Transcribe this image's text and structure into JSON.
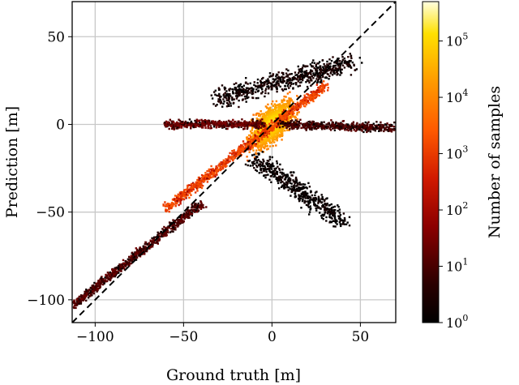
{
  "chart_data": {
    "type": "heatmap",
    "title": "",
    "xlabel": "Ground truth [m]",
    "ylabel": "Prediction [m]",
    "xlim": [
      -113,
      70
    ],
    "ylim": [
      -113,
      70
    ],
    "xticks": [
      -100,
      -50,
      0,
      50
    ],
    "yticks": [
      -100,
      -50,
      0,
      50
    ],
    "xtick_labels": [
      "−100",
      "−50",
      "0",
      "50"
    ],
    "ytick_labels": [
      "−100",
      "−50",
      "0",
      "50"
    ],
    "grid": true,
    "reference_line": {
      "style": "dashed",
      "color": "#000000",
      "from": [
        -113,
        -113
      ],
      "to": [
        70,
        70
      ]
    },
    "colormap": "hot",
    "colorbar": {
      "label": "Number of samples",
      "scale": "log",
      "range": [
        1,
        500000
      ],
      "ticks": [
        {
          "value": 1,
          "base": "10",
          "exp": "0"
        },
        {
          "value": 10,
          "base": "10",
          "exp": "1"
        },
        {
          "value": 100,
          "base": "10",
          "exp": "2"
        },
        {
          "value": 1000,
          "base": "10",
          "exp": "3"
        },
        {
          "value": 10000,
          "base": "10",
          "exp": "4"
        },
        {
          "value": 100000,
          "base": "10",
          "exp": "5"
        }
      ]
    },
    "density_regions": [
      {
        "name": "central-core",
        "center": [
          0,
          0
        ],
        "extent": [
          18,
          15
        ],
        "count": 300000
      },
      {
        "name": "near-diagonal-band",
        "from": [
          -60,
          -48
        ],
        "to": [
          30,
          22
        ],
        "count": 3000
      },
      {
        "name": "lower-diagonal-branch",
        "from": [
          -112,
          -103
        ],
        "to": [
          -40,
          -45
        ],
        "count": 30
      },
      {
        "name": "horizontal-band-left",
        "from": [
          -60,
          0
        ],
        "to": [
          -5,
          0
        ],
        "count": 50
      },
      {
        "name": "horizontal-band-right",
        "from": [
          5,
          0
        ],
        "to": [
          68,
          -2
        ],
        "count": 20
      },
      {
        "name": "upper-scatter",
        "from": [
          -30,
          15
        ],
        "to": [
          45,
          35
        ],
        "count": 5
      },
      {
        "name": "lower-scatter",
        "from": [
          -10,
          -20
        ],
        "to": [
          40,
          -55
        ],
        "count": 3
      }
    ]
  }
}
